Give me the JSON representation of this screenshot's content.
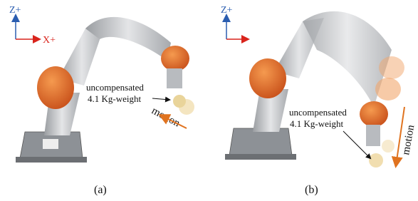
{
  "panels": [
    {
      "axes": {
        "z": "Z+",
        "x": "X+"
      },
      "annotation": [
        "uncompensated",
        "4.1 Kg-weight"
      ],
      "motion": "motion",
      "caption": "(a)"
    },
    {
      "axes": {
        "z": "Z+"
      },
      "annotation": [
        "uncompensated",
        "4.1 Kg-weight"
      ],
      "motion": "motion",
      "caption": "(b)"
    }
  ]
}
